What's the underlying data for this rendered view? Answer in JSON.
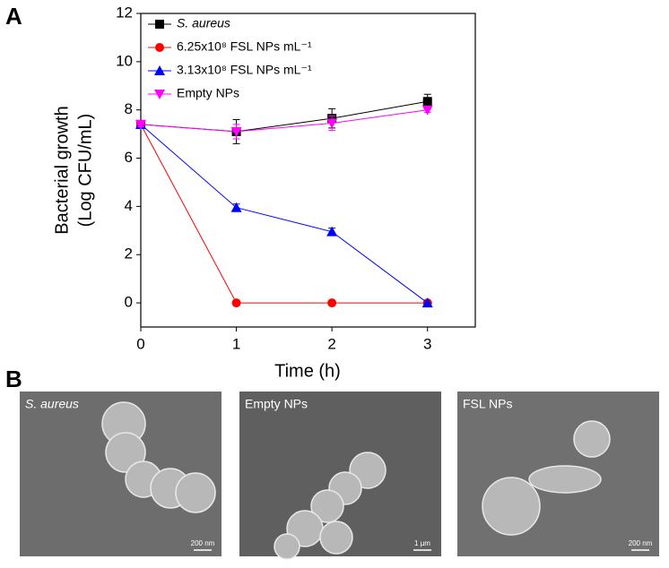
{
  "panels": [
    "A",
    "B"
  ],
  "chart_data": {
    "type": "line",
    "xlabel": "Time (h)",
    "ylabel": [
      "Bacterial growth",
      "(Log CFU/mL)"
    ],
    "x": [
      0,
      1,
      2,
      3
    ],
    "xlim": [
      0,
      3.5
    ],
    "xticks": [
      0,
      1,
      2,
      3
    ],
    "ylim": [
      -1,
      12
    ],
    "yticks": [
      0,
      2,
      4,
      6,
      8,
      10,
      12
    ],
    "legend": "upper-left",
    "series": [
      {
        "name": "S. aureus",
        "color": "#000000",
        "marker": "square",
        "values": [
          7.4,
          7.1,
          7.65,
          8.35
        ],
        "errors": [
          0.1,
          0.5,
          0.4,
          0.3
        ]
      },
      {
        "name": "6.25x10⁸ FSL NPs mL⁻¹",
        "color": "#ff0000",
        "marker": "circle",
        "values": [
          7.4,
          0,
          0,
          0
        ],
        "errors": [
          0.1,
          0,
          0,
          0
        ]
      },
      {
        "name": "3.13x10⁸ FSL NPs mL⁻¹",
        "color": "#0000ff",
        "marker": "triangle-up",
        "values": [
          7.4,
          3.95,
          2.95,
          0
        ],
        "errors": [
          0.1,
          0.15,
          0.15,
          0
        ]
      },
      {
        "name": "Empty NPs",
        "color": "#ff00ff",
        "marker": "triangle-down",
        "values": [
          7.4,
          7.1,
          7.45,
          8.0
        ],
        "errors": [
          0.1,
          0.3,
          0.3,
          0.1
        ]
      }
    ]
  },
  "images": [
    {
      "label": "S. aureus",
      "scale": "200 nm"
    },
    {
      "label": "Empty NPs",
      "scale": "1 µm"
    },
    {
      "label": "FSL NPs",
      "scale": "200 nm"
    }
  ]
}
